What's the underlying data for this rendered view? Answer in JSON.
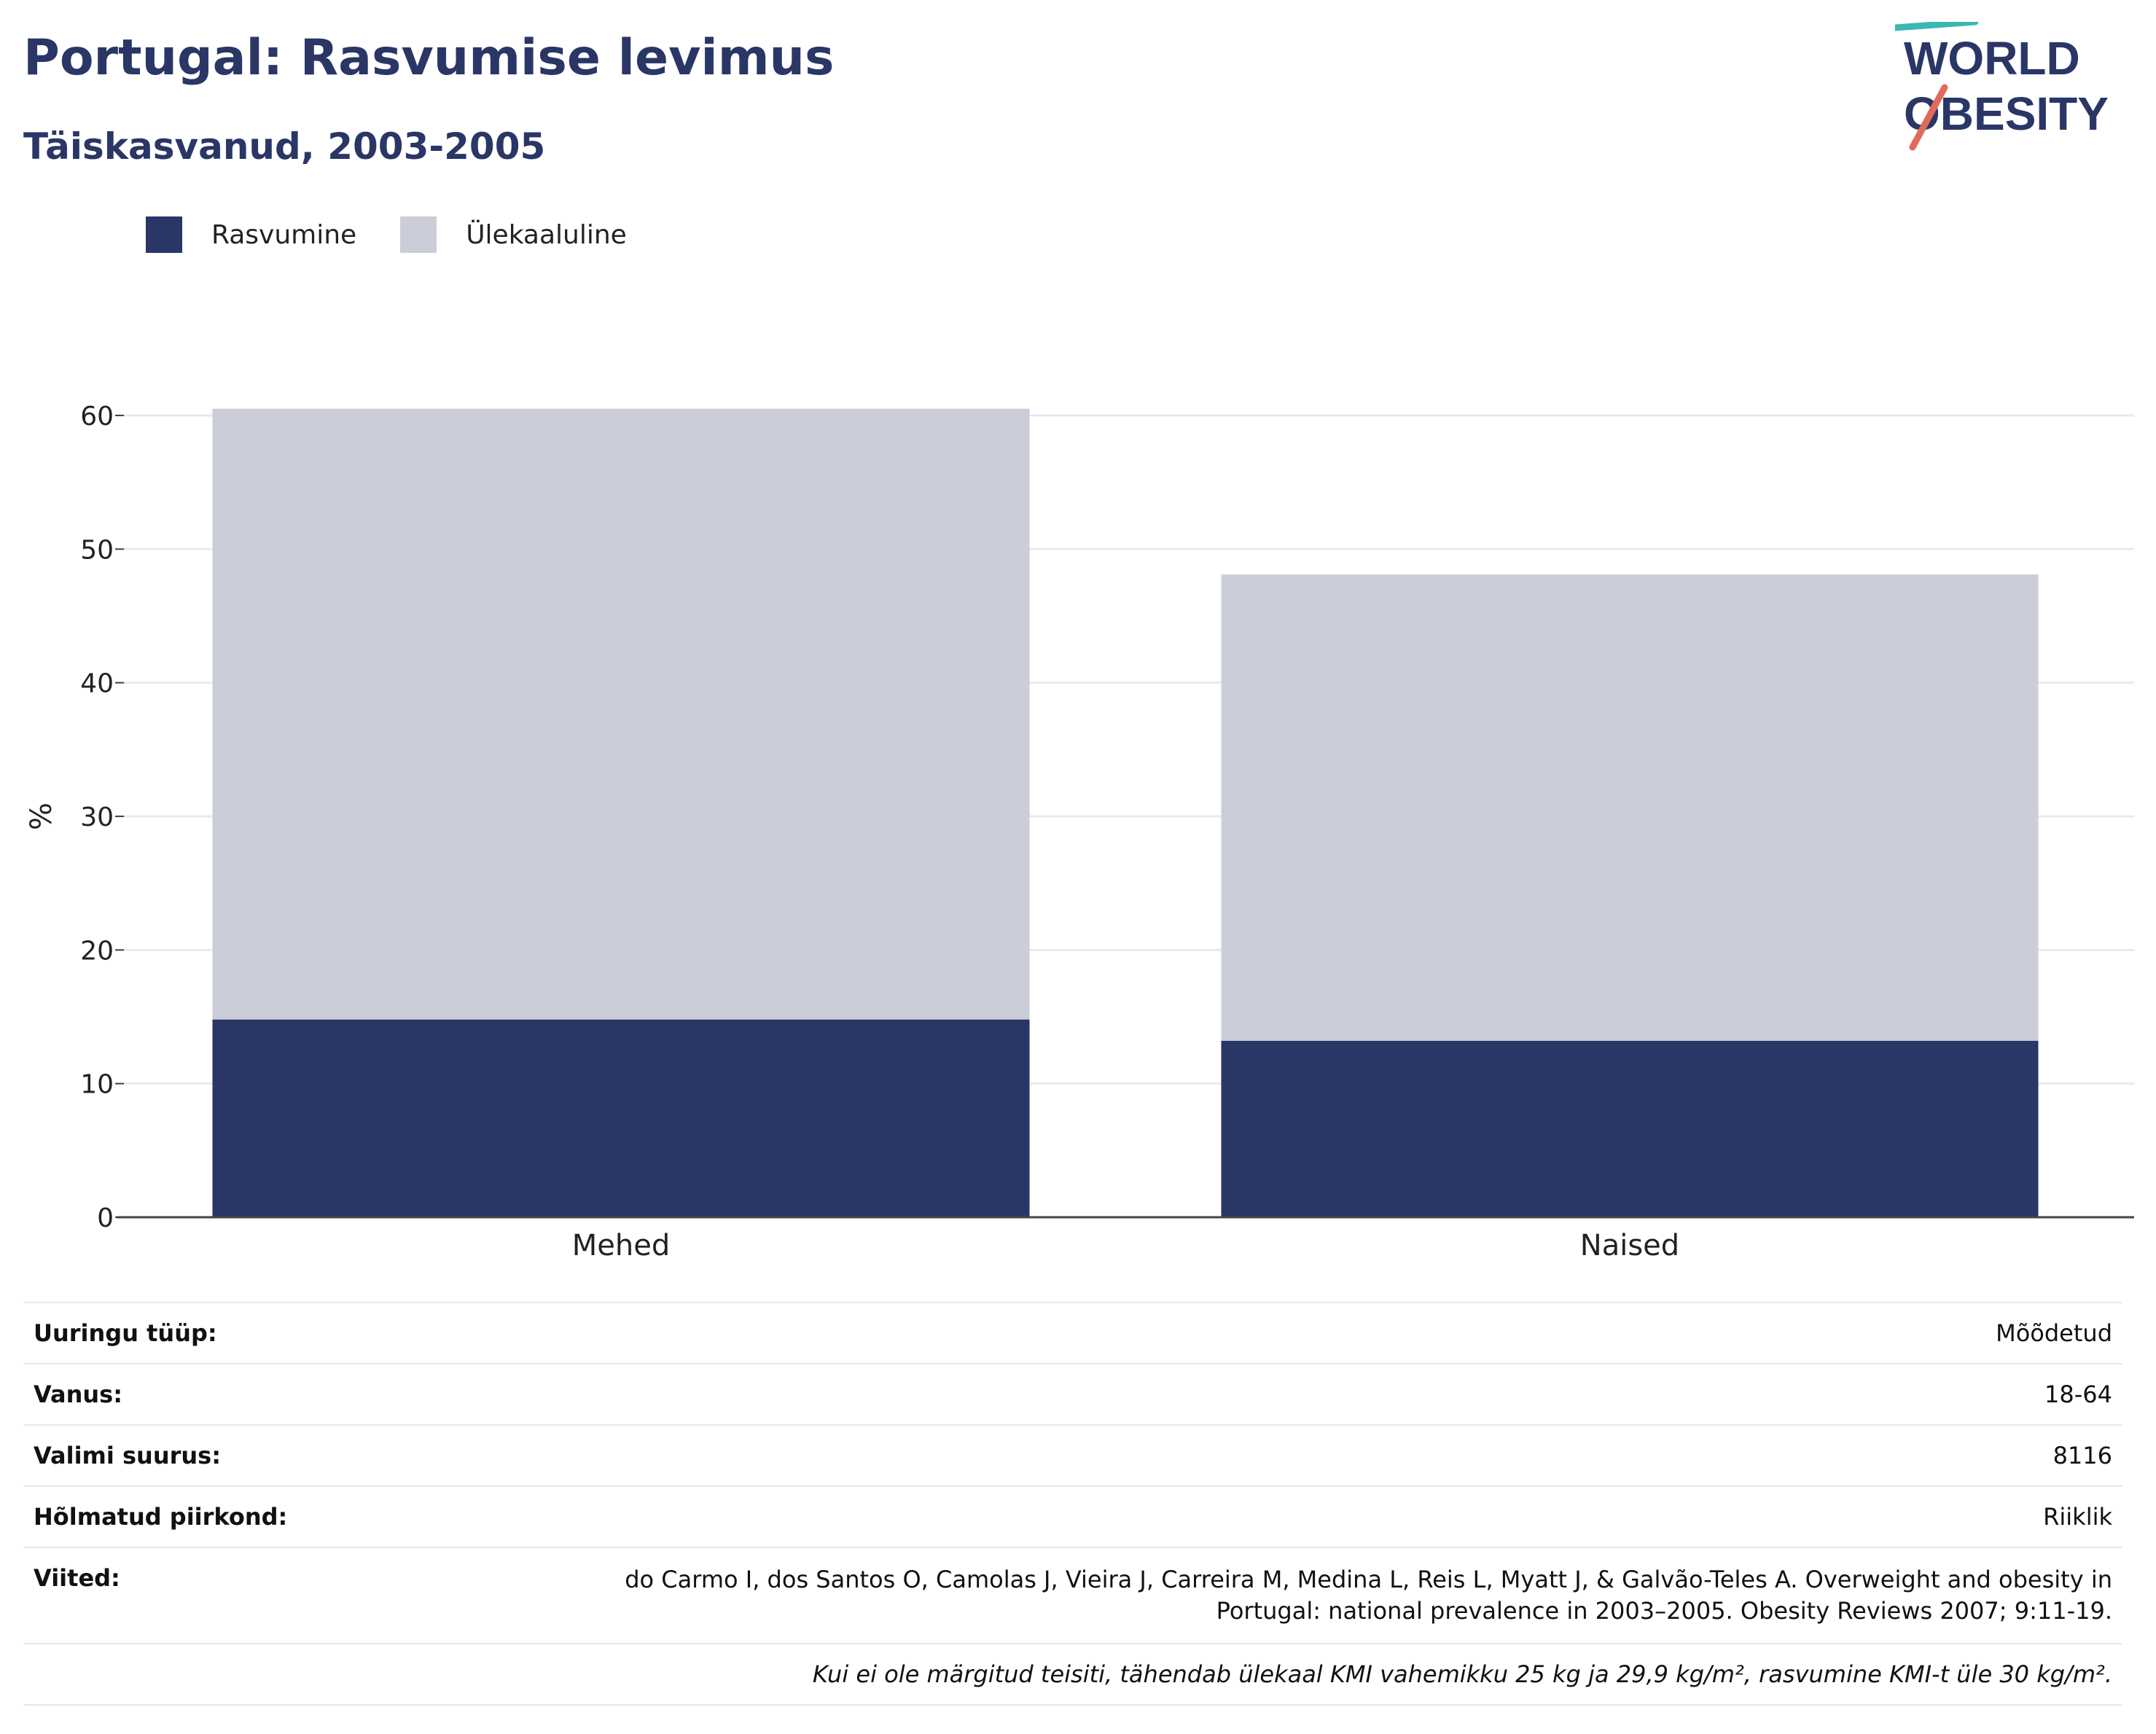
{
  "header": {
    "title": "Portugal: Rasvumise levimus",
    "subtitle": "Täiskasvanud, 2003-2005"
  },
  "logo": {
    "line1": "WORLD",
    "line2": "OBESITY"
  },
  "colors": {
    "obesity": "#2a3666",
    "overweight": "#cbcdd9",
    "text": "#2a3666",
    "grid": "#e8eaf0"
  },
  "chart_data": {
    "type": "bar",
    "stacked": true,
    "categories": [
      "Mehed",
      "Naised"
    ],
    "series": [
      {
        "name": "Rasvumine",
        "values": [
          14.8,
          13.2
        ]
      },
      {
        "name": "Ülekaaluline",
        "values": [
          45.7,
          34.9
        ]
      }
    ],
    "ylabel": "%",
    "ylim": [
      0,
      60
    ],
    "yticks": [
      0,
      10,
      20,
      30,
      40,
      50,
      60
    ],
    "grid": true,
    "legend": "top-left"
  },
  "meta": {
    "rows": [
      {
        "key": "Uuringu tüüp:",
        "value": "Mõõdetud"
      },
      {
        "key": "Vanus:",
        "value": "18-64"
      },
      {
        "key": "Valimi suurus:",
        "value": "8116"
      },
      {
        "key": "Hõlmatud piirkond:",
        "value": "Riiklik"
      }
    ],
    "ref_key": "Viited:",
    "ref_value": "do Carmo I, dos Santos O, Camolas J, Vieira J, Carreira M, Medina L, Reis L, Myatt J, & Galvão-Teles A. Overweight and obesity in Portugal: national prevalence in 2003–2005. Obesity Reviews 2007; 9:11-19.",
    "note": "Kui ei ole märgitud teisiti, tähendab ülekaal KMI vahemikku 25 kg ja 29,9 kg/m², rasvumine KMI-t üle 30 kg/m²."
  }
}
